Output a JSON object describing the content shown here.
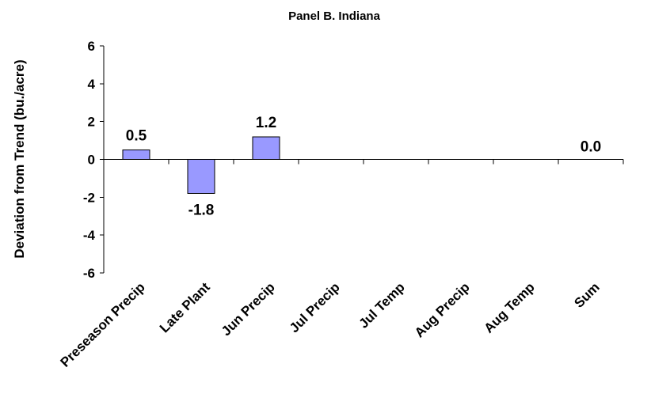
{
  "chart_data": {
    "type": "bar",
    "title": "Panel B. Indiana",
    "ylabel": "Deviation from Trend (bu./acre)",
    "xlabel": "",
    "categories": [
      "Preseason Precip",
      "Late Plant",
      "Jun Precip",
      "Jul Precip",
      "Jul Temp",
      "Aug Precip",
      "Aug Temp",
      "Sum"
    ],
    "values": [
      0.5,
      -1.8,
      1.2,
      0.0,
      0.0,
      0.0,
      0.0,
      0.0
    ],
    "data_labels": [
      "0.5",
      "-1.8",
      "1.2",
      "",
      "",
      "",
      "",
      "0.0"
    ],
    "ylim": [
      -6,
      6
    ],
    "yticks": [
      6,
      4,
      2,
      0,
      -2,
      -4,
      -6
    ],
    "grid": false,
    "legend": "none",
    "bar_color": "#9999ff"
  }
}
